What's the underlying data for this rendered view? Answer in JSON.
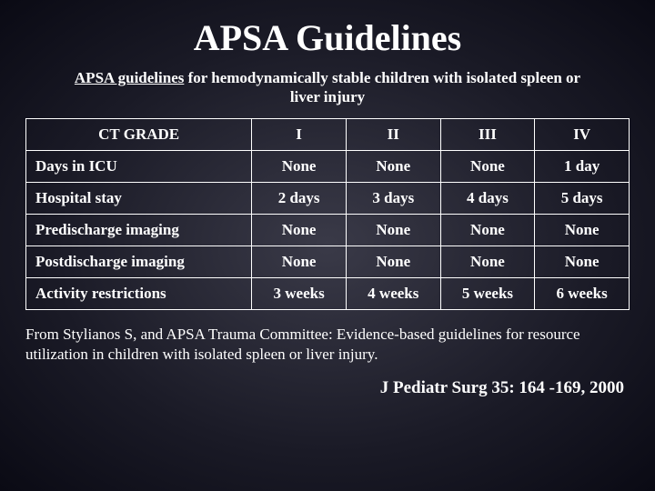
{
  "title": "APSA Guidelines",
  "subtitle_prefix": "APSA guidelines",
  "subtitle_rest": " for hemodynamically stable children with isolated spleen or liver injury",
  "table": {
    "headers": [
      "CT GRADE",
      "I",
      "II",
      "III",
      "IV"
    ],
    "rows": [
      {
        "label": "Days in ICU",
        "values": [
          "None",
          "None",
          "None",
          "1 day"
        ]
      },
      {
        "label": "Hospital stay",
        "values": [
          "2 days",
          "3 days",
          "4 days",
          "5 days"
        ]
      },
      {
        "label": "Predischarge imaging",
        "values": [
          "None",
          "None",
          "None",
          "None"
        ]
      },
      {
        "label": "Postdischarge imaging",
        "values": [
          "None",
          "None",
          "None",
          "None"
        ]
      },
      {
        "label": "Activity restrictions",
        "values": [
          "3 weeks",
          "4 weeks",
          "5 weeks",
          "6 weeks"
        ]
      }
    ]
  },
  "source": "From Stylianos S, and APSA Trauma Committee: Evidence-based guidelines for resource utilization in children with isolated spleen or liver injury.",
  "citation": "J Pediatr Surg 35: 164 -169, 2000",
  "colors": {
    "text": "#ffffff",
    "border": "#ffffff",
    "bg_center": "#3a3a48",
    "bg_edge": "#0a0a14"
  }
}
